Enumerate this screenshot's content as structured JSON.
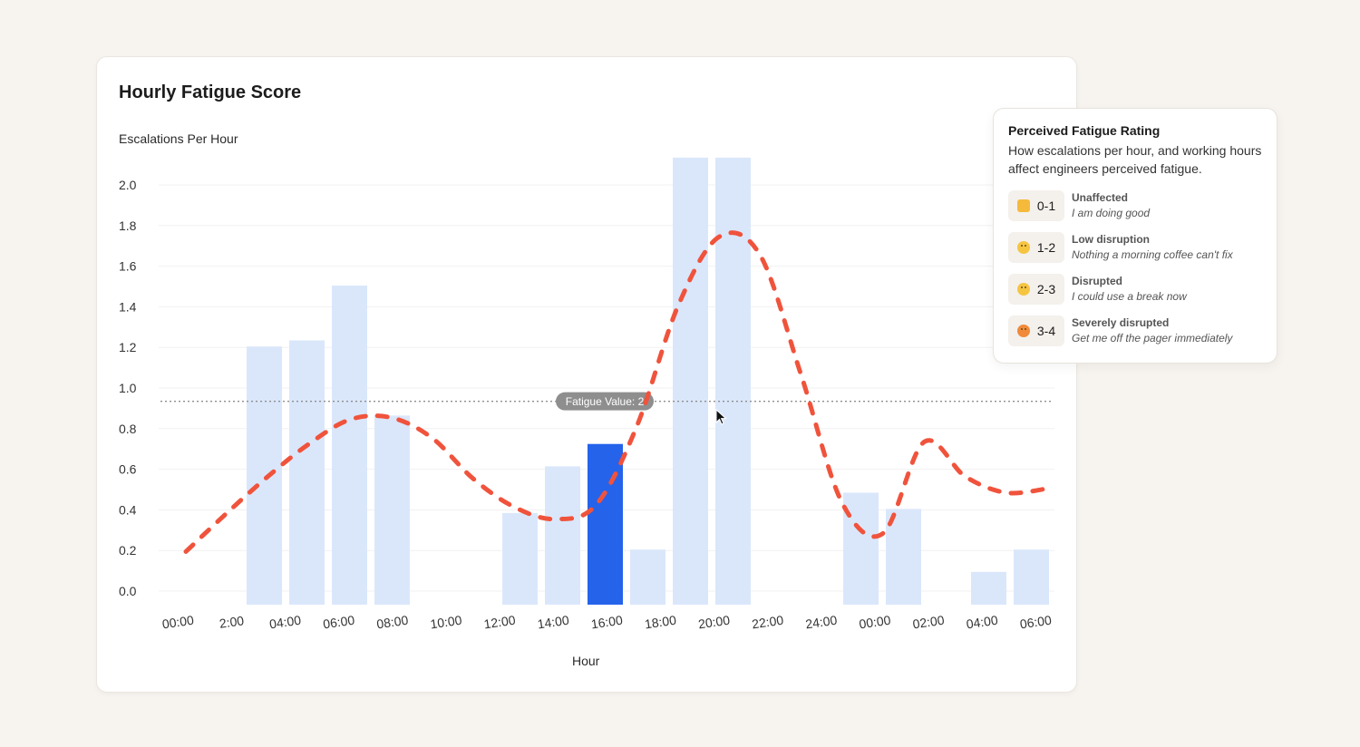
{
  "card": {
    "title": "Hourly Fatigue Score",
    "y_axis_label": "Escalations Per Hour",
    "x_axis_label": "Hour"
  },
  "legend": {
    "title": "Perceived Fatigue Rating",
    "description": "How escalations per hour, and working hours affect engineers perceived fatigue.",
    "items": [
      {
        "icon": "thumbs-up-icon",
        "range": "0-1",
        "label": "Unaffected",
        "sub": "I am doing good"
      },
      {
        "icon": "tired-face-icon",
        "range": "1-2",
        "label": "Low disruption",
        "sub": "Nothing a morning coffee can't fix"
      },
      {
        "icon": "grimace-face-icon",
        "range": "2-3",
        "label": "Disrupted",
        "sub": "I could use a break now"
      },
      {
        "icon": "hot-face-icon",
        "range": "3-4",
        "label": "Severely disrupted",
        "sub": "Get me off the pager immediately"
      }
    ]
  },
  "chart_data": {
    "type": "bar",
    "title": "Hourly Fatigue Score",
    "ylabel": "Escalations Per Hour",
    "xlabel": "Hour",
    "ylim": [
      0,
      2.0
    ],
    "yticks": [
      "0.0",
      "0.2",
      "0.4",
      "0.6",
      "0.8",
      "1.0",
      "1.2",
      "1.4",
      "1.6",
      "1.8",
      "2.0"
    ],
    "xtick_labels": [
      "00:00",
      "2:00",
      "04:00",
      "06:00",
      "08:00",
      "10:00",
      "12:00",
      "14:00",
      "16:00",
      "18:00",
      "20:00",
      "22:00",
      "24:00",
      "00:00",
      "02:00",
      "04:00",
      "06:00"
    ],
    "bars": [
      0,
      0,
      1.2,
      1.23,
      1.5,
      0.86,
      0,
      0,
      0.38,
      0.61,
      0.72,
      0.2,
      2.13,
      2.13,
      0,
      0,
      0.48,
      0.4,
      0,
      0.09,
      0.2
    ],
    "highlight_index": 10,
    "line": [
      0.19,
      0.38,
      0.56,
      0.72,
      0.84,
      0.85,
      0.75,
      0.55,
      0.41,
      0.35,
      0.42,
      0.81,
      1.4,
      1.74,
      1.65,
      1.06,
      0.43,
      0.28,
      0.73,
      0.56,
      0.48,
      0.5
    ],
    "threshold": {
      "value": 0.93,
      "label": "Fatigue Value: 2"
    },
    "colors": {
      "bar": "#dae7fb",
      "highlight": "#2563eb",
      "line": "#f0533c",
      "threshold": "#8e8e8e",
      "grid": "#f1f1f1"
    },
    "grid": true
  }
}
